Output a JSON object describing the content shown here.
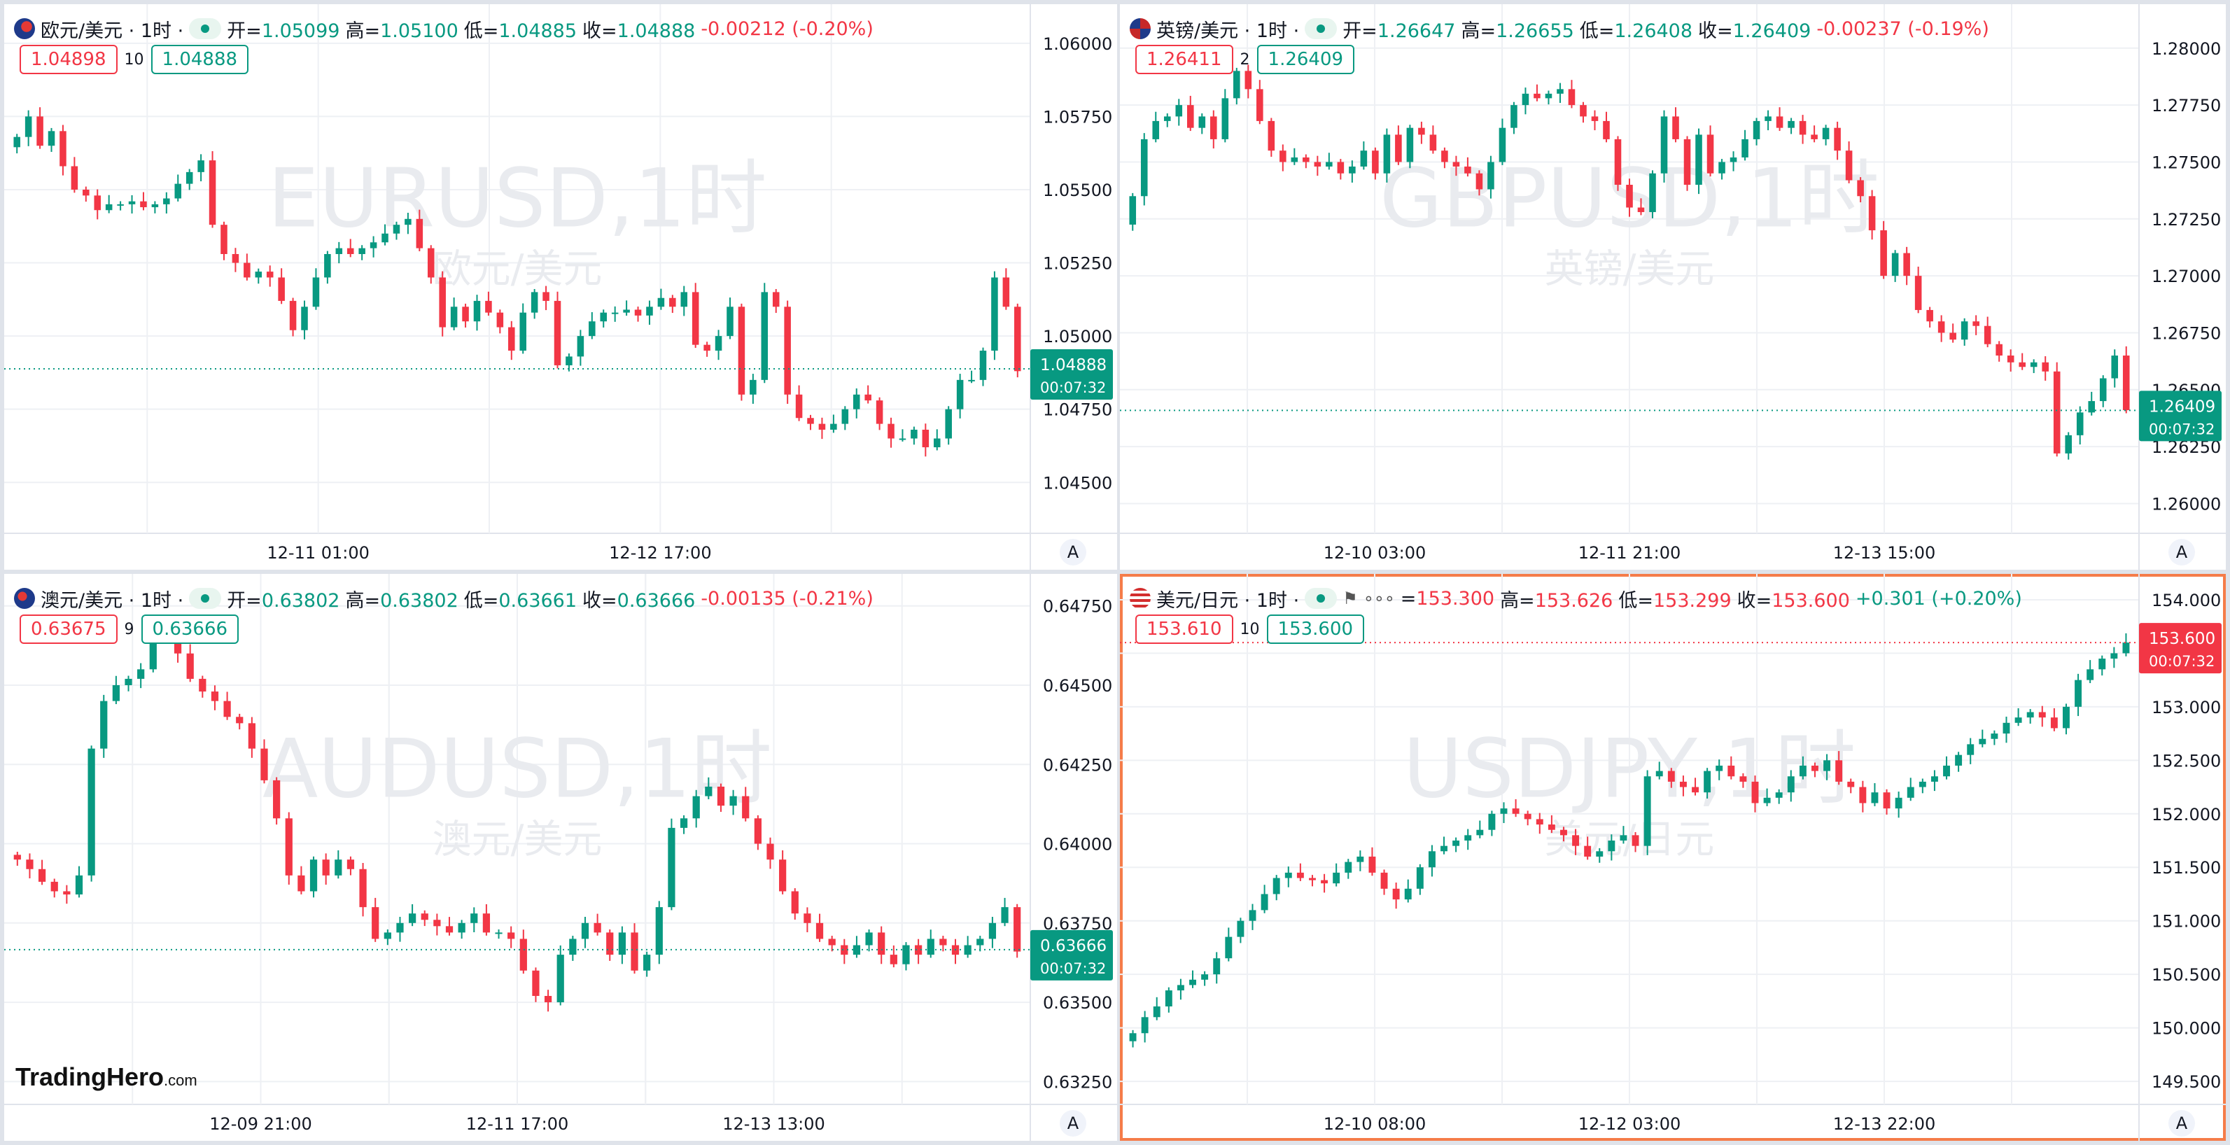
{
  "logo": {
    "name": "TradingHero",
    "suffix": ".com"
  },
  "panels": [
    {
      "id": "eurusd",
      "title": "欧元/美元 · 1时 ·",
      "flag_icon": "eu-flag-icon",
      "active": false,
      "ohlc": [
        {
          "label": "开=",
          "value": "1.05099"
        },
        {
          "label": "高=",
          "value": "1.05100"
        },
        {
          "label": "低=",
          "value": "1.04885"
        },
        {
          "label": "收=",
          "value": "1.04888"
        },
        {
          "label": "",
          "value": "-0.00212 (-0.20%)"
        }
      ],
      "change_direction": "down",
      "ohlc_color": "up",
      "sell": "1.04898",
      "spread": "10",
      "buy": "1.04888",
      "watermark": "EURUSD,1时",
      "watermark_sub": "欧元/美元",
      "price_axis": [
        "1.06000",
        "1.05750",
        "1.05500",
        "1.05250",
        "1.05000",
        "1.04750",
        "1.04500"
      ],
      "time_axis": [
        "12-11 01:00",
        "12-12 17:00"
      ],
      "last_price": "1.04888",
      "countdown": "00:07:32",
      "last_color": "#089981",
      "chart_data": {
        "type": "candlestick",
        "ylim": [
          1.0435,
          1.061
        ],
        "values": [
          1.0568,
          1.0575,
          1.0565,
          1.057,
          1.0558,
          1.055,
          1.0548,
          1.0543,
          1.0545,
          1.0545,
          1.0546,
          1.0544,
          1.0545,
          1.0547,
          1.0552,
          1.0556,
          1.056,
          1.0538,
          1.0528,
          1.0525,
          1.052,
          1.0522,
          1.052,
          1.0512,
          1.0502,
          1.051,
          1.052,
          1.0528,
          1.053,
          1.0528,
          1.053,
          1.0532,
          1.0535,
          1.0538,
          1.054,
          1.053,
          1.052,
          1.0503,
          1.051,
          1.0505,
          1.0512,
          1.0508,
          1.0503,
          1.0495,
          1.0508,
          1.0515,
          1.0512,
          1.049,
          1.0493,
          1.05,
          1.0505,
          1.0508,
          1.0508,
          1.0509,
          1.0507,
          1.051,
          1.0513,
          1.051,
          1.0515,
          1.0497,
          1.0495,
          1.05,
          1.051,
          1.048,
          1.0485,
          1.0515,
          1.051,
          1.048,
          1.0472,
          1.047,
          1.0468,
          1.047,
          1.0475,
          1.048,
          1.0478,
          1.047,
          1.0465,
          1.0465,
          1.0468,
          1.0462,
          1.0465,
          1.0475,
          1.0485,
          1.0485,
          1.0495,
          1.052,
          1.051,
          1.0488
        ]
      }
    },
    {
      "id": "gbpusd",
      "title": "英镑/美元 · 1时 ·",
      "flag_icon": "gb-flag-icon",
      "active": false,
      "ohlc": [
        {
          "label": "开=",
          "value": "1.26647"
        },
        {
          "label": "高=",
          "value": "1.26655"
        },
        {
          "label": "低=",
          "value": "1.26408"
        },
        {
          "label": "收=",
          "value": "1.26409"
        },
        {
          "label": "",
          "value": "-0.00237 (-0.19%)"
        }
      ],
      "change_direction": "down",
      "ohlc_color": "up",
      "sell": "1.26411",
      "spread": "2",
      "buy": "1.26409",
      "watermark": "GBPUSD,1时",
      "watermark_sub": "英镑/美元",
      "price_axis": [
        "1.28000",
        "1.27750",
        "1.27500",
        "1.27250",
        "1.27000",
        "1.26750",
        "1.26500",
        "1.26250",
        "1.26000"
      ],
      "time_axis": [
        "12-10 03:00",
        "12-11 21:00",
        "12-13 15:00"
      ],
      "last_price": "1.26409",
      "countdown": "00:07:32",
      "last_color": "#089981",
      "chart_data": {
        "type": "candlestick",
        "ylim": [
          1.259,
          1.2815
        ],
        "values": [
          1.2735,
          1.276,
          1.2768,
          1.277,
          1.2775,
          1.2765,
          1.277,
          1.276,
          1.2778,
          1.279,
          1.2782,
          1.2768,
          1.2755,
          1.275,
          1.2752,
          1.275,
          1.2748,
          1.275,
          1.2745,
          1.2748,
          1.2755,
          1.2745,
          1.2762,
          1.275,
          1.2765,
          1.2762,
          1.2755,
          1.275,
          1.2748,
          1.2745,
          1.2738,
          1.275,
          1.2765,
          1.2775,
          1.278,
          1.2778,
          1.278,
          1.2782,
          1.2775,
          1.277,
          1.2768,
          1.276,
          1.274,
          1.273,
          1.2728,
          1.2745,
          1.277,
          1.276,
          1.274,
          1.2762,
          1.2745,
          1.275,
          1.2752,
          1.276,
          1.2768,
          1.277,
          1.2765,
          1.2768,
          1.2762,
          1.276,
          1.2765,
          1.2755,
          1.2742,
          1.2735,
          1.272,
          1.27,
          1.271,
          1.27,
          1.2685,
          1.268,
          1.2675,
          1.2672,
          1.268,
          1.2678,
          1.267,
          1.2665,
          1.2662,
          1.266,
          1.2662,
          1.2658,
          1.2622,
          1.263,
          1.264,
          1.2645,
          1.2655,
          1.2665,
          1.2641
        ]
      }
    },
    {
      "id": "audusd",
      "title": "澳元/美元 · 1时 ·",
      "flag_icon": "au-flag-icon",
      "active": false,
      "ohlc": [
        {
          "label": "开=",
          "value": "0.63802"
        },
        {
          "label": "高=",
          "value": "0.63802"
        },
        {
          "label": "低=",
          "value": "0.63661"
        },
        {
          "label": "收=",
          "value": "0.63666"
        },
        {
          "label": "",
          "value": "-0.00135 (-0.21%)"
        }
      ],
      "change_direction": "down",
      "ohlc_color": "up",
      "sell": "0.63675",
      "spread": "9",
      "buy": "0.63666",
      "watermark": "AUDUSD,1时",
      "watermark_sub": "澳元/美元",
      "price_axis": [
        "0.64750",
        "0.64500",
        "0.64250",
        "0.64000",
        "0.63750",
        "0.63500",
        "0.63250"
      ],
      "time_axis": [
        "12-09 21:00",
        "12-11 17:00",
        "12-13 13:00"
      ],
      "last_price": "0.63666",
      "countdown": "00:07:32",
      "last_color": "#089981",
      "chart_data": {
        "type": "candlestick",
        "ylim": [
          0.632,
          0.6482
        ],
        "values": [
          0.6395,
          0.6392,
          0.6388,
          0.6385,
          0.6384,
          0.639,
          0.643,
          0.6445,
          0.645,
          0.6452,
          0.6455,
          0.6468,
          0.647,
          0.646,
          0.6452,
          0.6448,
          0.6445,
          0.644,
          0.6438,
          0.643,
          0.642,
          0.6408,
          0.639,
          0.6385,
          0.6395,
          0.639,
          0.6395,
          0.6392,
          0.638,
          0.637,
          0.6372,
          0.6375,
          0.6378,
          0.6376,
          0.6374,
          0.6372,
          0.6375,
          0.6378,
          0.6372,
          0.6372,
          0.637,
          0.636,
          0.6352,
          0.635,
          0.6365,
          0.637,
          0.6375,
          0.6372,
          0.6365,
          0.6372,
          0.636,
          0.6365,
          0.638,
          0.6405,
          0.6408,
          0.6415,
          0.6418,
          0.6412,
          0.6415,
          0.6408,
          0.64,
          0.6395,
          0.6385,
          0.6378,
          0.6375,
          0.637,
          0.6368,
          0.6365,
          0.6368,
          0.6372,
          0.6365,
          0.6362,
          0.6368,
          0.6365,
          0.637,
          0.6368,
          0.6365,
          0.6368,
          0.637,
          0.6375,
          0.638,
          0.6366
        ]
      }
    },
    {
      "id": "usdjpy",
      "title": "美元/日元 · 1时 ·",
      "flag_icon": "us-flag-icon",
      "active": true,
      "ohlc": [
        {
          "label": "=",
          "value": "153.300"
        },
        {
          "label": "高=",
          "value": "153.626"
        },
        {
          "label": "低=",
          "value": "153.299"
        },
        {
          "label": "收=",
          "value": "153.600"
        },
        {
          "label": "",
          "value": "+0.301 (+0.20%)"
        }
      ],
      "change_direction": "up",
      "ohlc_color": "down",
      "sell": "153.610",
      "spread": "10",
      "buy": "153.600",
      "watermark": "USDJPY,1时",
      "watermark_sub": "美元/日元",
      "price_axis": [
        "154.000",
        "153.500",
        "153.000",
        "152.500",
        "152.000",
        "151.500",
        "151.000",
        "150.500",
        "150.000",
        "149.500"
      ],
      "time_axis": [
        "12-10 08:00",
        "12-12 03:00",
        "12-13 22:00"
      ],
      "last_price": "153.600",
      "countdown": "00:07:32",
      "last_color": "#f23645",
      "chart_data": {
        "type": "candlestick",
        "ylim": [
          149.35,
          154.15
        ],
        "values": [
          149.95,
          150.1,
          150.2,
          150.35,
          150.4,
          150.45,
          150.5,
          150.65,
          150.85,
          151.0,
          151.1,
          151.25,
          151.4,
          151.45,
          151.4,
          151.38,
          151.35,
          151.45,
          151.55,
          151.6,
          151.45,
          151.3,
          151.2,
          151.3,
          151.5,
          151.65,
          151.7,
          151.75,
          151.8,
          151.85,
          152.0,
          152.05,
          152.0,
          151.95,
          151.9,
          151.85,
          151.8,
          151.7,
          151.6,
          151.65,
          151.75,
          151.8,
          151.7,
          152.35,
          152.4,
          152.3,
          152.25,
          152.2,
          152.4,
          152.45,
          152.35,
          152.3,
          152.1,
          152.15,
          152.2,
          152.35,
          152.45,
          152.4,
          152.5,
          152.3,
          152.25,
          152.1,
          152.2,
          152.05,
          152.15,
          152.25,
          152.3,
          152.35,
          152.45,
          152.55,
          152.65,
          152.7,
          152.75,
          152.85,
          152.9,
          152.95,
          152.9,
          152.8,
          153.0,
          153.25,
          153.35,
          153.45,
          153.5,
          153.6
        ]
      }
    }
  ]
}
